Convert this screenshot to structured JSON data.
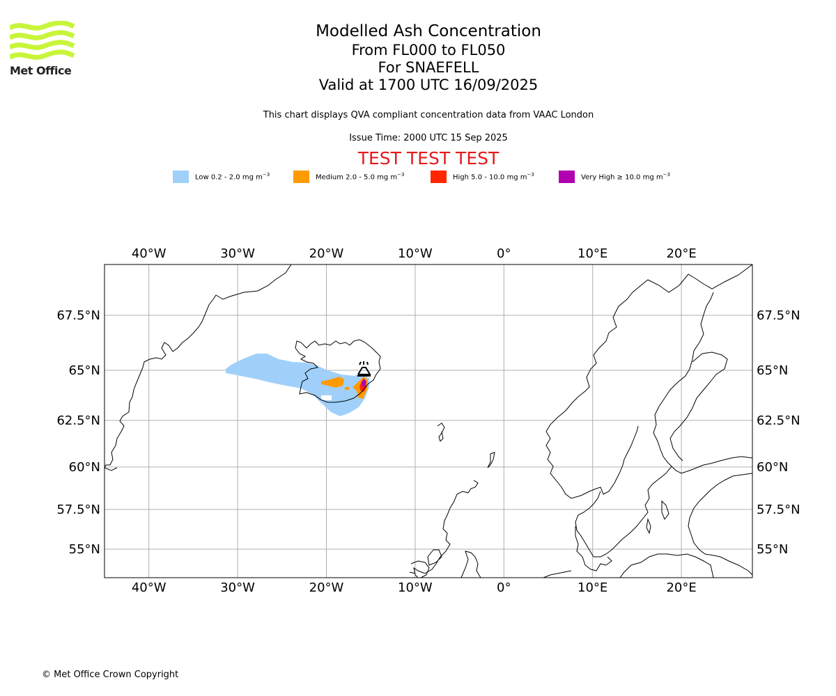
{
  "logo": {
    "text": "Met Office",
    "color": "#c8f53a"
  },
  "title": {
    "line1": "Modelled Ash Concentration",
    "line2": "From FL000 to FL050",
    "line3": "For SNAEFELL",
    "line4": "Valid at 1700 UTC 16/09/2025"
  },
  "subtitle": "This chart displays QVA compliant concentration data from VAAC London",
  "issue_time": "Issue Time: 2000 UTC 15 Sep 2025",
  "banner": "TEST TEST TEST",
  "legend": [
    {
      "label": "Low 0.2 - 2.0 mg m",
      "color": "#a0d0fa"
    },
    {
      "label": "Medium 2.0 - 5.0 mg m",
      "color": "#ff9a00"
    },
    {
      "label": "High 5.0 - 10.0 mg m",
      "color": "#ff2600"
    },
    {
      "label": "Very High ≥ 10.0 mg m",
      "color": "#b000b0"
    }
  ],
  "legend_unit_exponent": "−3",
  "map": {
    "lon_range": [
      -45,
      28
    ],
    "lat_range": [
      53.5,
      70.3
    ],
    "lon_ticks": [
      {
        "value": -40,
        "label": "40°W"
      },
      {
        "value": -30,
        "label": "30°W"
      },
      {
        "value": -20,
        "label": "20°W"
      },
      {
        "value": -10,
        "label": "10°W"
      },
      {
        "value": 0,
        "label": "0°"
      },
      {
        "value": 10,
        "label": "10°E"
      },
      {
        "value": 20,
        "label": "20°E"
      }
    ],
    "lat_ticks": [
      {
        "value": 67.5,
        "label": "67.5°N"
      },
      {
        "value": 65,
        "label": "65°N"
      },
      {
        "value": 62.5,
        "label": "62.5°N"
      },
      {
        "value": 60,
        "label": "60°N"
      },
      {
        "value": 57.5,
        "label": "57.5°N"
      },
      {
        "value": 55,
        "label": "55°N"
      }
    ],
    "grid": true,
    "volcano": {
      "name": "SNAEFELL",
      "lon": -15.6,
      "lat": 64.8
    },
    "gridline_color": "#b0b0b0"
  },
  "copyright": "© Met Office Crown Copyright"
}
